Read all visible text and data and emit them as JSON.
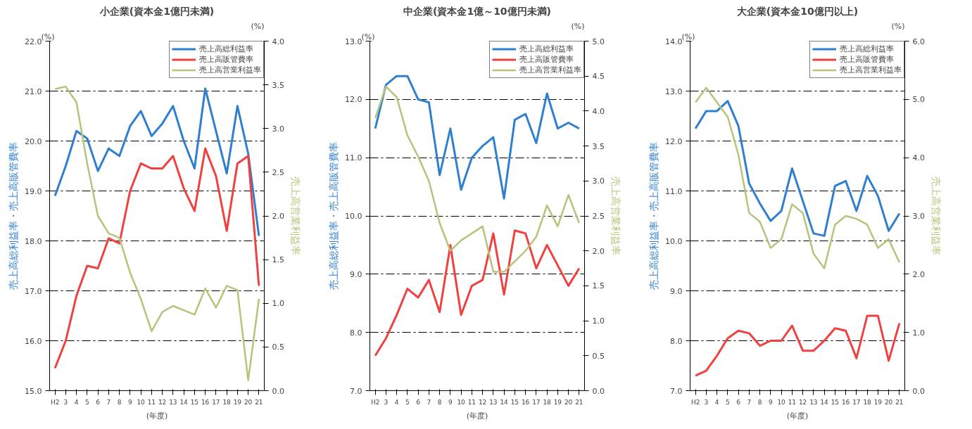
{
  "chart_data": [
    {
      "type": "line",
      "title": "小企業(資本金1億円未満)",
      "xlabel": "(年度)",
      "ylabel": "売上高総利益率・売上高販管費率",
      "y2label": "売上高営業利益率",
      "annotations": [
        "(%)",
        "(%)"
      ],
      "categories": [
        "H2",
        "3",
        "4",
        "5",
        "6",
        "7",
        "8",
        "9",
        "10",
        "11",
        "12",
        "13",
        "14",
        "15",
        "16",
        "17",
        "18",
        "19",
        "20",
        "21"
      ],
      "ylim": [
        15,
        22
      ],
      "yticks": [
        {
          "value": 15,
          "label": "15.0"
        },
        {
          "value": 16,
          "label": "16.0"
        },
        {
          "value": 17,
          "label": "17.0"
        },
        {
          "value": 18,
          "label": "18.0"
        },
        {
          "value": 19,
          "label": "19.0"
        },
        {
          "value": 20,
          "label": "20.0"
        },
        {
          "value": 21,
          "label": "21.0"
        },
        {
          "value": 22,
          "label": "22.0"
        }
      ],
      "y2lim": [
        0,
        4
      ],
      "y2ticks": [
        {
          "value": 0,
          "label": "0.0"
        },
        {
          "value": 0.5,
          "label": "0.5"
        },
        {
          "value": 1,
          "label": "1.0"
        },
        {
          "value": 1.5,
          "label": "1.5"
        },
        {
          "value": 2,
          "label": "2.0"
        },
        {
          "value": 2.5,
          "label": "2.5"
        },
        {
          "value": 3,
          "label": "3.0"
        },
        {
          "value": 3.5,
          "label": "3.5"
        },
        {
          "value": 4,
          "label": "4.0"
        }
      ],
      "grid": "y",
      "legend": "top right",
      "marker": "none",
      "line_style": "solid",
      "series": [
        {
          "name": "売上高総利益率",
          "color": "#2f7fd0",
          "values": [
            18.9,
            19.5,
            20.2,
            20.05,
            19.4,
            19.85,
            19.7,
            20.3,
            20.6,
            20.1,
            20.35,
            20.7,
            20.0,
            19.45,
            21.05,
            20.2,
            19.35,
            20.7,
            19.75,
            18.1
          ]
        },
        {
          "name": "売上高販管費率",
          "color": "#f04040",
          "values": [
            15.45,
            16.0,
            16.9,
            17.5,
            17.45,
            18.05,
            17.95,
            19.0,
            19.55,
            19.45,
            19.45,
            19.7,
            19.05,
            18.6,
            19.85,
            19.3,
            18.2,
            19.55,
            19.7,
            17.1
          ]
        },
        {
          "name": "売上高営業利益率",
          "color": "#b5c47a",
          "axis": "y2",
          "values": [
            3.45,
            3.48,
            3.3,
            2.6,
            2.0,
            1.8,
            1.75,
            1.35,
            1.05,
            0.68,
            0.9,
            0.97,
            0.92,
            0.87,
            1.17,
            0.95,
            1.2,
            1.15,
            0.12,
            1.05
          ]
        }
      ]
    },
    {
      "type": "line",
      "title": "中企業(資本金1億～10億円未満)",
      "xlabel": "(年度)",
      "ylabel": "売上高総利益率・売上高販管費率",
      "y2label": "売上高営業利益率",
      "annotations": [
        "(%)",
        "(%)"
      ],
      "categories": [
        "H2",
        "3",
        "4",
        "5",
        "6",
        "7",
        "8",
        "9",
        "10",
        "11",
        "12",
        "13",
        "14",
        "15",
        "16",
        "17",
        "18",
        "19",
        "20",
        "21"
      ],
      "ylim": [
        7,
        13
      ],
      "yticks": [
        {
          "value": 7,
          "label": "7.0"
        },
        {
          "value": 8,
          "label": "8.0"
        },
        {
          "value": 9,
          "label": "9.0"
        },
        {
          "value": 10,
          "label": "10.0"
        },
        {
          "value": 11,
          "label": "11.0"
        },
        {
          "value": 12,
          "label": "12.0"
        },
        {
          "value": 13,
          "label": "13.0"
        }
      ],
      "y2lim": [
        0,
        5
      ],
      "y2ticks": [
        {
          "value": 0,
          "label": "0.0"
        },
        {
          "value": 0.5,
          "label": "0.5"
        },
        {
          "value": 1,
          "label": "1.0"
        },
        {
          "value": 1.5,
          "label": "1.5"
        },
        {
          "value": 2,
          "label": "2.0"
        },
        {
          "value": 2.5,
          "label": "2.5"
        },
        {
          "value": 3,
          "label": "3.0"
        },
        {
          "value": 3.5,
          "label": "3.5"
        },
        {
          "value": 4,
          "label": "4.0"
        },
        {
          "value": 4.5,
          "label": "4.5"
        },
        {
          "value": 5,
          "label": "5.0"
        }
      ],
      "grid": "y",
      "legend": "top right",
      "marker": "none",
      "line_style": "solid",
      "series": [
        {
          "name": "売上高総利益率",
          "color": "#2f7fd0",
          "values": [
            11.5,
            12.25,
            12.4,
            12.4,
            12.0,
            11.95,
            10.7,
            11.5,
            10.45,
            11.0,
            11.2,
            11.35,
            10.3,
            11.65,
            11.75,
            11.25,
            12.1,
            11.5,
            11.6,
            11.5
          ]
        },
        {
          "name": "売上高販管費率",
          "color": "#f04040",
          "values": [
            7.6,
            7.9,
            8.3,
            8.75,
            8.6,
            8.9,
            8.35,
            9.5,
            8.3,
            8.8,
            8.9,
            9.7,
            8.65,
            9.75,
            9.7,
            9.1,
            9.5,
            9.15,
            8.8,
            9.1
          ]
        },
        {
          "name": "売上高営業利益率",
          "color": "#b5c47a",
          "axis": "y2",
          "values": [
            3.9,
            4.35,
            4.2,
            3.65,
            3.35,
            3.0,
            2.4,
            2.0,
            2.15,
            2.25,
            2.35,
            1.7,
            1.7,
            1.85,
            2.0,
            2.2,
            2.65,
            2.35,
            2.8,
            2.4
          ]
        }
      ]
    },
    {
      "type": "line",
      "title": "大企業(資本金10億円以上)",
      "xlabel": "(年度)",
      "ylabel": "売上高総利益率・売上高販管費率",
      "y2label": "売上高営業利益率",
      "annotations": [
        "(%)",
        "(%)"
      ],
      "categories": [
        "H2",
        "3",
        "4",
        "5",
        "6",
        "7",
        "8",
        "9",
        "10",
        "11",
        "12",
        "13",
        "14",
        "15",
        "16",
        "17",
        "18",
        "19",
        "20",
        "21"
      ],
      "ylim": [
        7,
        14
      ],
      "yticks": [
        {
          "value": 7,
          "label": "7.0"
        },
        {
          "value": 8,
          "label": "8.0"
        },
        {
          "value": 9,
          "label": "9.0"
        },
        {
          "value": 10,
          "label": "10.0"
        },
        {
          "value": 11,
          "label": "11.0"
        },
        {
          "value": 12,
          "label": "12.0"
        },
        {
          "value": 13,
          "label": "13.0"
        },
        {
          "value": 14,
          "label": "14.0"
        }
      ],
      "y2lim": [
        0,
        6
      ],
      "y2ticks": [
        {
          "value": 0,
          "label": "0.0"
        },
        {
          "value": 1,
          "label": "1.0"
        },
        {
          "value": 2,
          "label": "2.0"
        },
        {
          "value": 3,
          "label": "3.0"
        },
        {
          "value": 4,
          "label": "4.0"
        },
        {
          "value": 5,
          "label": "5.0"
        },
        {
          "value": 6,
          "label": "6.0"
        }
      ],
      "grid": "y",
      "legend": "top right",
      "marker": "none",
      "line_style": "solid",
      "series": [
        {
          "name": "売上高総利益率",
          "color": "#2f7fd0",
          "values": [
            12.25,
            12.6,
            12.6,
            12.8,
            12.3,
            11.15,
            10.75,
            10.4,
            10.6,
            11.45,
            10.8,
            10.15,
            10.1,
            11.1,
            11.2,
            10.6,
            11.3,
            10.9,
            10.2,
            10.55
          ]
        },
        {
          "name": "売上高販管費率",
          "color": "#f04040",
          "values": [
            7.3,
            7.4,
            7.7,
            8.05,
            8.2,
            8.15,
            7.9,
            8.0,
            8.0,
            8.3,
            7.8,
            7.8,
            8.0,
            8.25,
            8.2,
            7.65,
            8.5,
            8.5,
            7.6,
            8.35
          ]
        },
        {
          "name": "売上高営業利益率",
          "color": "#b5c47a",
          "axis": "y2",
          "values": [
            4.95,
            5.2,
            4.95,
            4.7,
            4.05,
            3.05,
            2.9,
            2.45,
            2.6,
            3.2,
            3.05,
            2.35,
            2.1,
            2.85,
            3.0,
            2.95,
            2.85,
            2.45,
            2.6,
            2.2
          ]
        }
      ]
    }
  ]
}
